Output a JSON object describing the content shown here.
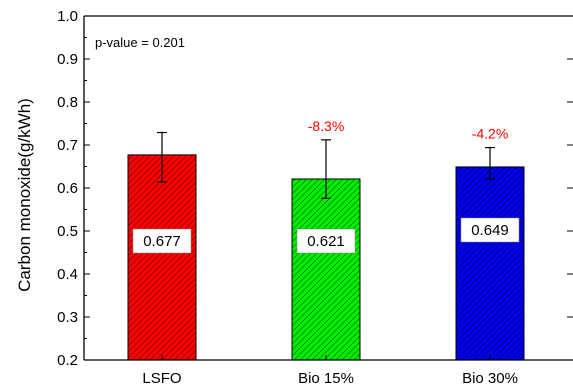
{
  "chart_data": {
    "type": "bar",
    "categories": [
      "LSFO",
      "Bio 15%",
      "Bio 30%"
    ],
    "values": [
      0.677,
      0.621,
      0.649
    ],
    "error_upper": [
      0.729,
      0.712,
      0.694
    ],
    "error_lower": [
      0.614,
      0.576,
      0.621
    ],
    "value_labels": [
      "0.677",
      "0.621",
      "0.649"
    ],
    "change_labels": [
      "",
      "-8.3%",
      "-4.2%"
    ],
    "colors": [
      "#ff0000",
      "#00ee00",
      "#0000ee"
    ],
    "hatch": "diagonal",
    "annotation": "p-value = 0.201",
    "xlabel": "",
    "ylabel": "Carbon monoxide(g/kWh)",
    "ylim": [
      0.2,
      1.0
    ],
    "yticks": [
      "0.2",
      "0.3",
      "0.4",
      "0.5",
      "0.6",
      "0.7",
      "0.8",
      "0.9",
      "1.0"
    ],
    "grid": false,
    "legend": "none"
  }
}
